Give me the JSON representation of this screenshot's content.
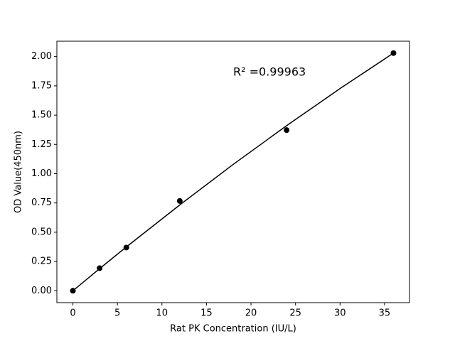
{
  "chart_data": {
    "type": "scatter",
    "x_label": "Rat PK Concentration (IU/L)",
    "y_label": "OD Value(450nm)",
    "annotation": "R² =0.99963",
    "series": [
      {
        "mode": "markers",
        "color": "#000000",
        "x": [
          0,
          3,
          6,
          12,
          24,
          36
        ],
        "values": [
          0,
          0.193,
          0.369,
          0.767,
          1.372,
          2.03
        ]
      },
      {
        "mode": "line",
        "color": "#000000",
        "x": [
          0,
          3,
          6,
          12,
          18,
          24,
          30,
          36
        ],
        "values": [
          0,
          0.189,
          0.374,
          0.733,
          1.079,
          1.41,
          1.727,
          2.03
        ]
      }
    ],
    "xlim": [
      -1.8,
      37.8
    ],
    "xticks": [
      0,
      5,
      10,
      15,
      20,
      25,
      30,
      35
    ],
    "ylim": [
      -0.1015,
      2.1315
    ],
    "yticks": [
      {
        "value": 0,
        "label": "0.00"
      },
      {
        "value": 0.25,
        "label": "0.25"
      },
      {
        "value": 0.5,
        "label": "0.50"
      },
      {
        "value": 0.75,
        "label": "0.75"
      },
      {
        "value": 1,
        "label": "1.00"
      },
      {
        "value": 1.25,
        "label": "1.25"
      },
      {
        "value": 1.5,
        "label": "1.50"
      },
      {
        "value": 1.75,
        "label": "1.75"
      },
      {
        "value": 2,
        "label": "2.00"
      }
    ],
    "grid": false
  }
}
